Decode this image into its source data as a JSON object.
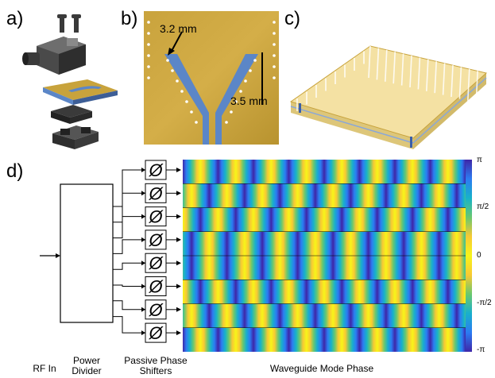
{
  "panels": {
    "a": "a)",
    "b": "b)",
    "c": "c)",
    "d": "d)"
  },
  "dimensions": {
    "width": "3.2 mm",
    "length": "3.5 mm"
  },
  "phase_shifter_symbol": "Ø",
  "stages": {
    "rf_in": "RF In",
    "power_divider": [
      "Power",
      "Divider"
    ],
    "phase_shifters": [
      "Passive Phase",
      "Shifters"
    ],
    "waveguide_phase": "Waveguide Mode Phase"
  },
  "colorbar": {
    "ticks": [
      "π",
      "π/2",
      "0",
      "-π/2",
      "-π"
    ],
    "colors": [
      "#3e26a8",
      "#2d7cf2",
      "#17b2c9",
      "#69c86f",
      "#f7c934",
      "#f7f519",
      "#f9c933",
      "#6ac86e",
      "#18b0cc",
      "#2b7bf3",
      "#3e26a8"
    ]
  },
  "phase_map": {
    "rows": 8,
    "periods_per_row": 8,
    "row_offsets": [
      0.0,
      0.25,
      0.5,
      0.75,
      0.75,
      0.5,
      0.25,
      0.0
    ]
  },
  "colors": {
    "substrate": "#c8a33c",
    "copper_strip": "#5b86c7",
    "via": "#ffffff"
  }
}
